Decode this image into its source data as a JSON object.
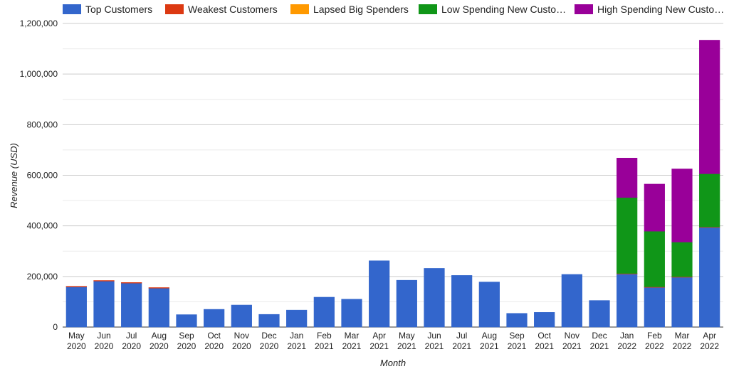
{
  "chart_data": {
    "type": "bar",
    "stacked": true,
    "title": "",
    "xlabel": "Month",
    "ylabel": "Revenue (USD)",
    "ylim": [
      0,
      1200000
    ],
    "y_ticks": [
      "0",
      "200,000",
      "400,000",
      "600,000",
      "800,000",
      "1,000,000",
      "1,200,000"
    ],
    "grid": true,
    "legend_position": "top",
    "categories": [
      [
        "May",
        "2020"
      ],
      [
        "Jun",
        "2020"
      ],
      [
        "Jul",
        "2020"
      ],
      [
        "Aug",
        "2020"
      ],
      [
        "Sep",
        "2020"
      ],
      [
        "Oct",
        "2020"
      ],
      [
        "Nov",
        "2020"
      ],
      [
        "Dec",
        "2020"
      ],
      [
        "Jan",
        "2021"
      ],
      [
        "Feb",
        "2021"
      ],
      [
        "Mar",
        "2021"
      ],
      [
        "Apr",
        "2021"
      ],
      [
        "May",
        "2021"
      ],
      [
        "Jun",
        "2021"
      ],
      [
        "Jul",
        "2021"
      ],
      [
        "Aug",
        "2021"
      ],
      [
        "Sep",
        "2021"
      ],
      [
        "Oct",
        "2021"
      ],
      [
        "Nov",
        "2021"
      ],
      [
        "Dec",
        "2021"
      ],
      [
        "Jan",
        "2022"
      ],
      [
        "Feb",
        "2022"
      ],
      [
        "Mar",
        "2022"
      ],
      [
        "Apr",
        "2022"
      ]
    ],
    "series": [
      {
        "name": "Top Customers",
        "color": "#3366cc",
        "values": [
          160000,
          183000,
          175000,
          155000,
          49000,
          70000,
          87000,
          50000,
          67000,
          118000,
          110000,
          262000,
          185000,
          232000,
          204000,
          178000,
          54000,
          58000,
          208000,
          105000,
          210000,
          157000,
          197000,
          394000
        ]
      },
      {
        "name": "Weakest Customers",
        "color": "#dc3912",
        "values": [
          1000,
          1000,
          1000,
          1000,
          0,
          0,
          0,
          0,
          0,
          0,
          0,
          0,
          0,
          0,
          0,
          0,
          0,
          0,
          0,
          0,
          2000,
          2000,
          2000,
          2000
        ]
      },
      {
        "name": "Lapsed Big Spenders",
        "color": "#ff9900",
        "values": [
          0,
          0,
          0,
          0,
          0,
          0,
          0,
          0,
          0,
          0,
          0,
          0,
          0,
          0,
          0,
          0,
          0,
          0,
          0,
          0,
          0,
          0,
          0,
          0
        ]
      },
      {
        "name": "Low Spending New Custo…",
        "color": "#109618",
        "values": [
          0,
          0,
          0,
          0,
          0,
          0,
          0,
          0,
          0,
          0,
          0,
          0,
          0,
          0,
          0,
          0,
          0,
          0,
          0,
          0,
          300000,
          220000,
          137000,
          210000
        ]
      },
      {
        "name": "High Spending New Custo…",
        "color": "#990099",
        "values": [
          0,
          0,
          0,
          0,
          0,
          0,
          0,
          0,
          0,
          0,
          0,
          0,
          0,
          0,
          0,
          0,
          0,
          0,
          0,
          0,
          156000,
          186000,
          289000,
          528000
        ]
      }
    ]
  }
}
